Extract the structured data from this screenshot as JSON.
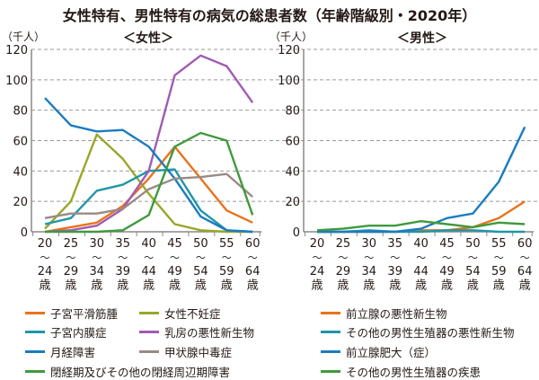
{
  "title": "女性特有、男性特有の病気の総患者数（年齢階級別・2020年）",
  "chart_data": [
    {
      "type": "line",
      "title": "＜女性＞",
      "ylabel": "（千人）",
      "ylim": [
        0,
        120
      ],
      "yticks": [
        "0",
        "20",
        "40",
        "60",
        "80",
        "100",
        "120"
      ],
      "grid": true,
      "categories": [
        [
          "20",
          "～",
          "24",
          "歳"
        ],
        [
          "25",
          "～",
          "29",
          "歳"
        ],
        [
          "30",
          "～",
          "34",
          "歳"
        ],
        [
          "35",
          "～",
          "39",
          "歳"
        ],
        [
          "40",
          "～",
          "44",
          "歳"
        ],
        [
          "45",
          "～",
          "49",
          "歳"
        ],
        [
          "50",
          "～",
          "54",
          "歳"
        ],
        [
          "55",
          "～",
          "59",
          "歳"
        ],
        [
          "60",
          "～",
          "64",
          "歳"
        ]
      ],
      "series": [
        {
          "name": "子宮平滑筋腫",
          "color": "#e8731c",
          "values": [
            0,
            3,
            6,
            17,
            35,
            56,
            35,
            14,
            6
          ]
        },
        {
          "name": "女性不妊症",
          "color": "#9aa628",
          "values": [
            2,
            20,
            64,
            48,
            25,
            5,
            1,
            0,
            0
          ]
        },
        {
          "name": "子宮内膜症",
          "color": "#1e97a8",
          "values": [
            5,
            9,
            27,
            31,
            40,
            41,
            14,
            1,
            0
          ]
        },
        {
          "name": "乳房の悪性新生物",
          "color": "#a05bb5",
          "values": [
            0,
            1,
            4,
            15,
            40,
            103,
            116,
            109,
            85
          ]
        },
        {
          "name": "月経障害",
          "color": "#1b7cc0",
          "values": [
            88,
            70,
            66,
            67,
            56,
            35,
            10,
            1,
            0
          ]
        },
        {
          "name": "甲状腺中毒症",
          "color": "#9a8a84",
          "values": [
            9,
            12,
            12,
            15,
            28,
            35,
            36,
            38,
            23
          ]
        },
        {
          "name": "閉経期及びその他の閉経周辺期障害",
          "color": "#3f9a3c",
          "values": [
            0,
            0,
            0,
            1,
            11,
            56,
            65,
            60,
            11
          ]
        }
      ]
    },
    {
      "type": "line",
      "title": "＜男性＞",
      "ylabel": "（千人）",
      "ylim": [
        0,
        120
      ],
      "yticks": [
        "0",
        "20",
        "40",
        "60",
        "80",
        "100",
        "120"
      ],
      "grid": true,
      "categories": [
        [
          "20",
          "～",
          "24",
          "歳"
        ],
        [
          "25",
          "～",
          "29",
          "歳"
        ],
        [
          "30",
          "～",
          "34",
          "歳"
        ],
        [
          "35",
          "～",
          "39",
          "歳"
        ],
        [
          "40",
          "～",
          "44",
          "歳"
        ],
        [
          "45",
          "～",
          "49",
          "歳"
        ],
        [
          "50",
          "～",
          "54",
          "歳"
        ],
        [
          "55",
          "～",
          "59",
          "歳"
        ],
        [
          "60",
          "～",
          "64",
          "歳"
        ]
      ],
      "series": [
        {
          "name": "前立腺の悪性新生物",
          "color": "#e8731c",
          "values": [
            0,
            0,
            0,
            0,
            1,
            1,
            3,
            9,
            20
          ]
        },
        {
          "name": "その他の男性生殖器の悪性新生物",
          "color": "#1e97a8",
          "values": [
            0,
            0,
            1,
            0,
            0,
            1,
            1,
            0,
            0
          ]
        },
        {
          "name": "前立腺肥大（症）",
          "color": "#1b7cc0",
          "values": [
            0,
            0,
            0,
            0,
            2,
            9,
            12,
            33,
            69
          ]
        },
        {
          "name": "その他の男性生殖器の疾患",
          "color": "#3f9a3c",
          "values": [
            1,
            2,
            4,
            4,
            7,
            5,
            3,
            6,
            5
          ]
        }
      ]
    }
  ]
}
